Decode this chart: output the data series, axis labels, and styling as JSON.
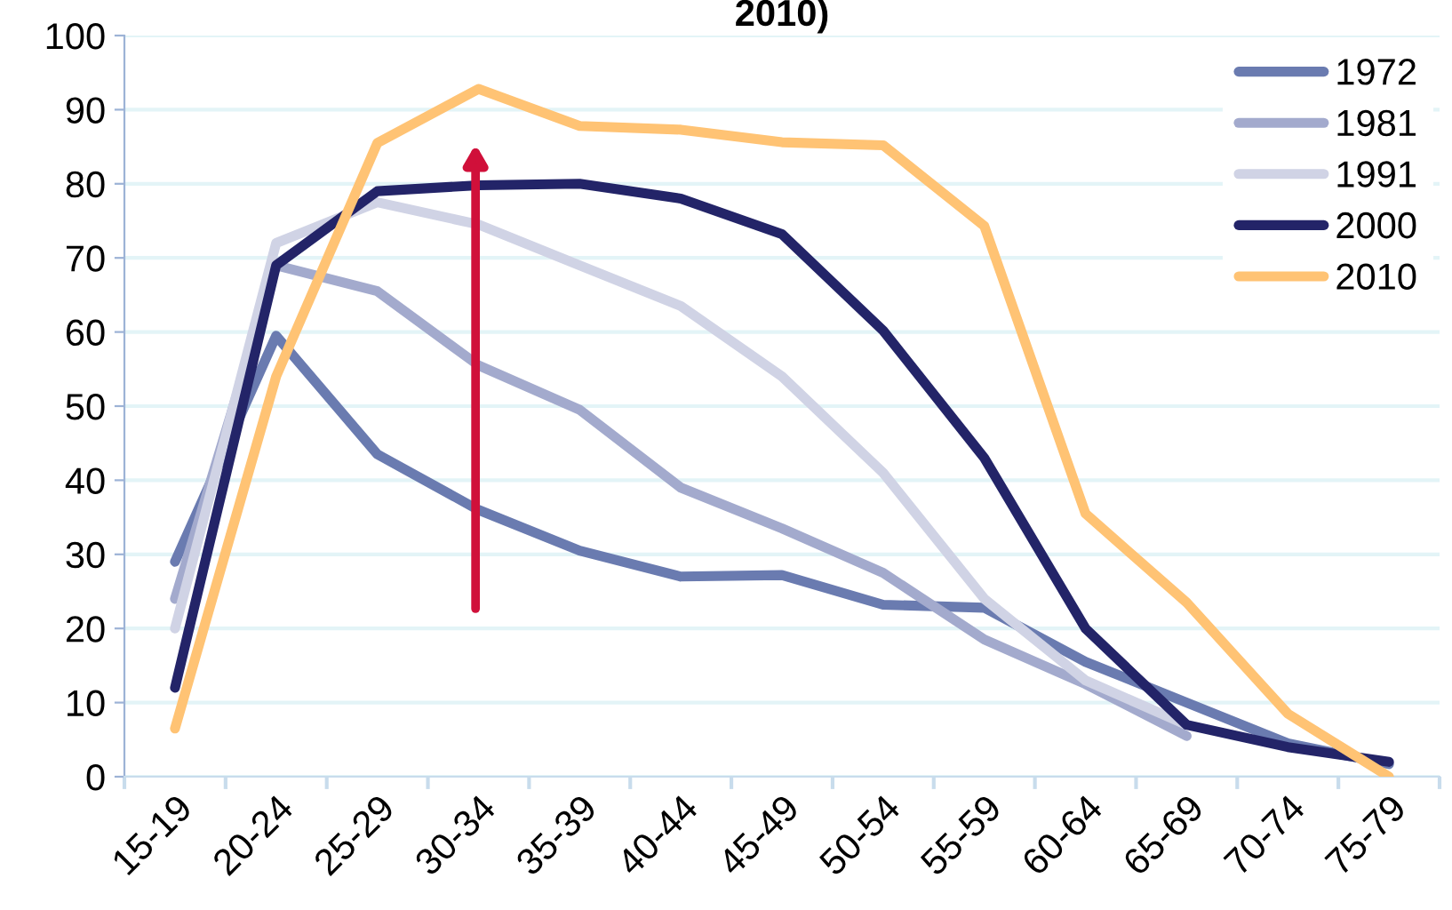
{
  "chart_data": {
    "type": "line",
    "title": "2010)",
    "categories": [
      "15-19",
      "20-24",
      "25-29",
      "30-34",
      "35-39",
      "40-44",
      "45-49",
      "50-54",
      "55-59",
      "60-64",
      "65-69",
      "70-74",
      "75-79"
    ],
    "series": [
      {
        "name": "1972",
        "color": "#6a7bb0",
        "values": [
          29,
          59.5,
          43.5,
          36,
          30.5,
          27,
          27.2,
          23.2,
          22.8,
          15.5,
          10,
          4.5,
          1.7
        ]
      },
      {
        "name": "1981",
        "color": "#a3aacd",
        "values": [
          24,
          69,
          65.5,
          55.5,
          49.5,
          39,
          33.5,
          27.5,
          18.5,
          12.5,
          5.5,
          null,
          null
        ]
      },
      {
        "name": "1991",
        "color": "#d0d3e5",
        "values": [
          20,
          72,
          77.5,
          74.5,
          69,
          63.5,
          54,
          41,
          24,
          13,
          7,
          null,
          null
        ]
      },
      {
        "name": "2000",
        "color": "#232468",
        "values": [
          12,
          69,
          79,
          79.8,
          80,
          78,
          73.2,
          60.2,
          43,
          20,
          7,
          4,
          2
        ]
      },
      {
        "name": "2010",
        "color": "#ffc374",
        "values": [
          6.5,
          54,
          85.5,
          92.8,
          87.8,
          87.3,
          85.6,
          85.2,
          74.3,
          35.5,
          23.5,
          8.5,
          0
        ]
      }
    ],
    "ylim": [
      0,
      100
    ],
    "yticks": [
      0,
      10,
      20,
      30,
      40,
      50,
      60,
      70,
      80,
      90,
      100
    ],
    "grid": "y",
    "legend": "top right",
    "marker": "none",
    "line_style": "solid"
  }
}
